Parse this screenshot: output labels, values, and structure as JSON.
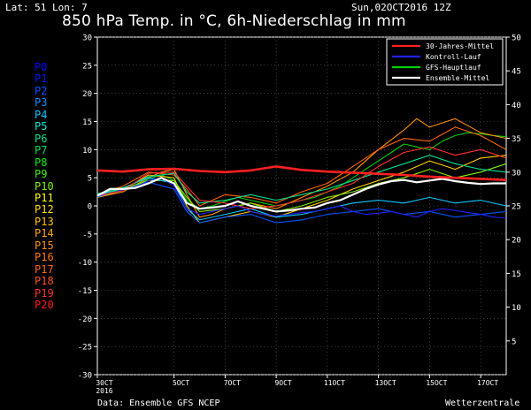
{
  "header": {
    "location": "Lat: 51 Lon: 7",
    "title": "850 hPa Temp. in °C, 6h-Niederschlag in mm",
    "run": "Sun,02OCT2016 12Z"
  },
  "footer": {
    "source": "Data: Ensemble GFS NCEP",
    "credit": "Wetterzentrale"
  },
  "members": [
    {
      "label": "P0",
      "color": "#0000ff"
    },
    {
      "label": "P1",
      "color": "#0018ff"
    },
    {
      "label": "P2",
      "color": "#0055ff"
    },
    {
      "label": "P3",
      "color": "#0090ff"
    },
    {
      "label": "P4",
      "color": "#00c8ff"
    },
    {
      "label": "P5",
      "color": "#00e8d0"
    },
    {
      "label": "P6",
      "color": "#00e090"
    },
    {
      "label": "P7",
      "color": "#00e050"
    },
    {
      "label": "P8",
      "color": "#00f000"
    },
    {
      "label": "P9",
      "color": "#40f000"
    },
    {
      "label": "P10",
      "color": "#80f000"
    },
    {
      "label": "P11",
      "color": "#ffff00"
    },
    {
      "label": "P12",
      "color": "#ffdd00"
    },
    {
      "label": "P13",
      "color": "#ffc000"
    },
    {
      "label": "P14",
      "color": "#ffa500"
    },
    {
      "label": "P15",
      "color": "#ff9000"
    },
    {
      "label": "P16",
      "color": "#ff7a00"
    },
    {
      "label": "P17",
      "color": "#ff6600"
    },
    {
      "label": "P18",
      "color": "#ff5020"
    },
    {
      "label": "P19",
      "color": "#ff3030"
    },
    {
      "label": "P20",
      "color": "#ff1a1a"
    }
  ],
  "chart_data": {
    "type": "line",
    "x_ticks": [
      "30CT\n2016",
      "5OCT",
      "7OCT",
      "9OCT",
      "11OCT",
      "13OCT",
      "15OCT",
      "17OCT"
    ],
    "x_tick_positions": [
      0,
      12,
      20,
      28,
      36,
      44,
      52,
      60
    ],
    "x_range": [
      0,
      64
    ],
    "y_left": {
      "range": [
        -30,
        30
      ],
      "ticks": [
        30,
        25,
        20,
        15,
        10,
        5,
        0,
        -5,
        -10,
        -15,
        -20,
        -25,
        -30
      ]
    },
    "y_right": {
      "range": [
        0,
        50
      ],
      "ticks": [
        50,
        45,
        40,
        35,
        30,
        25,
        20,
        15,
        10,
        5
      ]
    },
    "legend": {
      "placement": "top-right",
      "entries": [
        {
          "name": "30-Jahres-Mittel",
          "color": "#ff2020"
        },
        {
          "name": "Kontroll-Lauf",
          "color": "#2020ff"
        },
        {
          "name": "GFS-Hauptlauf",
          "color": "#00d000"
        },
        {
          "name": "Ensemble-Mittel",
          "color": "#ffffff"
        }
      ]
    },
    "grid": true,
    "series": [
      {
        "name": "30-Jahres-Mittel",
        "color": "#ff2020",
        "points": [
          [
            0,
            6.3
          ],
          [
            4,
            6.1
          ],
          [
            8,
            6.5
          ],
          [
            12,
            6.6
          ],
          [
            16,
            6.2
          ],
          [
            20,
            6.0
          ],
          [
            24,
            6.3
          ],
          [
            28,
            7.0
          ],
          [
            32,
            6.4
          ],
          [
            36,
            6.1
          ],
          [
            40,
            5.9
          ],
          [
            44,
            5.7
          ],
          [
            48,
            5.5
          ],
          [
            52,
            5.2
          ],
          [
            56,
            5.0
          ],
          [
            60,
            4.8
          ],
          [
            64,
            4.6
          ]
        ]
      },
      {
        "name": "Ensemble-Mittel",
        "color": "#ffffff",
        "points": [
          [
            0,
            1.8
          ],
          [
            2,
            3.0
          ],
          [
            4,
            3.0
          ],
          [
            6,
            3.2
          ],
          [
            8,
            4.0
          ],
          [
            10,
            5.0
          ],
          [
            12,
            4.0
          ],
          [
            14,
            0.5
          ],
          [
            16,
            -0.5
          ],
          [
            18,
            -0.3
          ],
          [
            20,
            0.0
          ],
          [
            22,
            0.8
          ],
          [
            24,
            0.0
          ],
          [
            26,
            -0.5
          ],
          [
            28,
            -1.0
          ],
          [
            30,
            -0.8
          ],
          [
            32,
            -0.5
          ],
          [
            34,
            -0.3
          ],
          [
            36,
            0.5
          ],
          [
            38,
            1.0
          ],
          [
            40,
            2.0
          ],
          [
            42,
            3.0
          ],
          [
            44,
            3.8
          ],
          [
            46,
            4.4
          ],
          [
            48,
            4.6
          ],
          [
            50,
            4.2
          ],
          [
            52,
            4.5
          ],
          [
            54,
            4.8
          ],
          [
            56,
            4.4
          ],
          [
            58,
            4.1
          ],
          [
            60,
            3.9
          ],
          [
            62,
            4.0
          ],
          [
            64,
            4.0
          ]
        ]
      },
      {
        "name": "Kontroll-Lauf",
        "color": "#2020ff",
        "points": [
          [
            0,
            1.8
          ],
          [
            2,
            3.0
          ],
          [
            4,
            2.8
          ],
          [
            6,
            3.3
          ],
          [
            8,
            4.5
          ],
          [
            10,
            5.0
          ],
          [
            12,
            3.5
          ],
          [
            14,
            -0.5
          ],
          [
            16,
            -1.5
          ],
          [
            18,
            -1.0
          ],
          [
            20,
            -0.5
          ],
          [
            22,
            0.0
          ],
          [
            24,
            -1.0
          ],
          [
            26,
            -1.5
          ],
          [
            28,
            -1.8
          ],
          [
            30,
            -1.5
          ],
          [
            32,
            -1.2
          ],
          [
            34,
            -1.0
          ],
          [
            36,
            -0.5
          ],
          [
            38,
            0.0
          ],
          [
            40,
            -1.0
          ],
          [
            42,
            -1.5
          ],
          [
            44,
            -1.3
          ],
          [
            46,
            -1.0
          ],
          [
            48,
            -1.5
          ],
          [
            50,
            -2.0
          ],
          [
            52,
            -1.0
          ],
          [
            54,
            -0.5
          ],
          [
            56,
            -0.8
          ],
          [
            58,
            -1.2
          ],
          [
            60,
            -1.5
          ],
          [
            62,
            -2.0
          ],
          [
            64,
            -2.2
          ]
        ]
      },
      {
        "name": "GFS-Hauptlauf",
        "color": "#00d000",
        "points": [
          [
            0,
            1.8
          ],
          [
            2,
            3.1
          ],
          [
            4,
            3.2
          ],
          [
            6,
            3.5
          ],
          [
            8,
            4.8
          ],
          [
            10,
            5.5
          ],
          [
            12,
            4.5
          ],
          [
            14,
            1.0
          ],
          [
            16,
            -0.5
          ],
          [
            18,
            0.0
          ],
          [
            20,
            0.8
          ],
          [
            22,
            1.5
          ],
          [
            24,
            1.0
          ],
          [
            26,
            0.5
          ],
          [
            28,
            0.0
          ],
          [
            30,
            0.5
          ],
          [
            32,
            1.0
          ],
          [
            34,
            1.5
          ],
          [
            36,
            2.5
          ],
          [
            38,
            3.5
          ],
          [
            40,
            5.0
          ],
          [
            42,
            6.5
          ],
          [
            44,
            8.0
          ],
          [
            46,
            9.5
          ],
          [
            48,
            11.0
          ],
          [
            50,
            10.5
          ],
          [
            52,
            10.0
          ],
          [
            54,
            11.5
          ],
          [
            56,
            12.5
          ],
          [
            58,
            13.0
          ],
          [
            60,
            12.8
          ],
          [
            62,
            12.5
          ],
          [
            64,
            12.3
          ]
        ]
      },
      {
        "name": "",
        "color": "#ff9000",
        "points": [
          [
            0,
            1.5
          ],
          [
            4,
            2.5
          ],
          [
            8,
            5.0
          ],
          [
            10,
            6.0
          ],
          [
            12,
            6.5
          ],
          [
            14,
            2.0
          ],
          [
            16,
            -2.0
          ],
          [
            18,
            -1.5
          ],
          [
            20,
            -0.5
          ],
          [
            24,
            0.5
          ],
          [
            28,
            -0.5
          ],
          [
            32,
            1.5
          ],
          [
            36,
            3.5
          ],
          [
            40,
            6.0
          ],
          [
            44,
            10.0
          ],
          [
            48,
            13.5
          ],
          [
            50,
            15.5
          ],
          [
            52,
            14.0
          ],
          [
            56,
            15.5
          ],
          [
            60,
            13.0
          ],
          [
            64,
            12.0
          ]
        ]
      },
      {
        "name": "",
        "color": "#ff6600",
        "points": [
          [
            0,
            2.0
          ],
          [
            4,
            3.5
          ],
          [
            8,
            6.0
          ],
          [
            12,
            5.5
          ],
          [
            14,
            3.0
          ],
          [
            16,
            0.0
          ],
          [
            20,
            2.0
          ],
          [
            24,
            1.5
          ],
          [
            28,
            0.5
          ],
          [
            32,
            2.5
          ],
          [
            36,
            4.0
          ],
          [
            40,
            7.0
          ],
          [
            44,
            10.0
          ],
          [
            48,
            12.0
          ],
          [
            52,
            11.5
          ],
          [
            56,
            14.0
          ],
          [
            60,
            12.5
          ],
          [
            64,
            10.0
          ]
        ]
      },
      {
        "name": "",
        "color": "#ffcc00",
        "points": [
          [
            0,
            1.5
          ],
          [
            4,
            2.8
          ],
          [
            8,
            5.5
          ],
          [
            12,
            5.0
          ],
          [
            14,
            0.0
          ],
          [
            16,
            -3.0
          ],
          [
            20,
            -2.0
          ],
          [
            24,
            -1.0
          ],
          [
            28,
            -2.0
          ],
          [
            32,
            -0.5
          ],
          [
            36,
            1.0
          ],
          [
            40,
            3.0
          ],
          [
            44,
            4.5
          ],
          [
            48,
            6.0
          ],
          [
            52,
            8.0
          ],
          [
            56,
            6.5
          ],
          [
            60,
            8.5
          ],
          [
            64,
            9.0
          ]
        ]
      },
      {
        "name": "",
        "color": "#80f000",
        "points": [
          [
            0,
            2.0
          ],
          [
            4,
            3.0
          ],
          [
            8,
            4.5
          ],
          [
            12,
            4.5
          ],
          [
            14,
            1.5
          ],
          [
            16,
            -1.0
          ],
          [
            20,
            -0.5
          ],
          [
            24,
            0.5
          ],
          [
            28,
            -1.0
          ],
          [
            32,
            0.0
          ],
          [
            36,
            1.5
          ],
          [
            40,
            2.5
          ],
          [
            44,
            4.0
          ],
          [
            48,
            5.0
          ],
          [
            52,
            6.5
          ],
          [
            56,
            5.0
          ],
          [
            60,
            6.0
          ],
          [
            64,
            7.5
          ]
        ]
      },
      {
        "name": "",
        "color": "#00c8ff",
        "points": [
          [
            0,
            1.8
          ],
          [
            4,
            3.2
          ],
          [
            8,
            5.0
          ],
          [
            12,
            4.0
          ],
          [
            14,
            -0.5
          ],
          [
            16,
            -2.5
          ],
          [
            20,
            -1.5
          ],
          [
            24,
            -0.5
          ],
          [
            28,
            -2.0
          ],
          [
            32,
            -1.5
          ],
          [
            36,
            -0.5
          ],
          [
            40,
            0.5
          ],
          [
            44,
            1.0
          ],
          [
            48,
            0.5
          ],
          [
            52,
            1.5
          ],
          [
            56,
            0.5
          ],
          [
            60,
            1.0
          ],
          [
            64,
            0.0
          ]
        ]
      },
      {
        "name": "",
        "color": "#0055ff",
        "points": [
          [
            0,
            1.6
          ],
          [
            4,
            2.9
          ],
          [
            8,
            4.2
          ],
          [
            12,
            3.0
          ],
          [
            14,
            -1.0
          ],
          [
            16,
            -3.0
          ],
          [
            20,
            -2.0
          ],
          [
            24,
            -1.5
          ],
          [
            28,
            -3.0
          ],
          [
            32,
            -2.5
          ],
          [
            36,
            -1.5
          ],
          [
            40,
            -1.0
          ],
          [
            44,
            -0.5
          ],
          [
            48,
            -1.5
          ],
          [
            52,
            -1.0
          ],
          [
            56,
            -2.0
          ],
          [
            60,
            -1.5
          ],
          [
            64,
            -1.0
          ]
        ]
      },
      {
        "name": "",
        "color": "#00e090",
        "points": [
          [
            0,
            2.2
          ],
          [
            4,
            3.1
          ],
          [
            8,
            5.2
          ],
          [
            12,
            5.8
          ],
          [
            14,
            2.5
          ],
          [
            16,
            0.5
          ],
          [
            20,
            1.0
          ],
          [
            24,
            2.0
          ],
          [
            28,
            1.0
          ],
          [
            32,
            2.0
          ],
          [
            36,
            3.0
          ],
          [
            40,
            4.5
          ],
          [
            44,
            6.0
          ],
          [
            48,
            7.5
          ],
          [
            52,
            9.0
          ],
          [
            56,
            7.5
          ],
          [
            60,
            6.5
          ],
          [
            64,
            6.0
          ]
        ]
      },
      {
        "name": "",
        "color": "#ff3030",
        "points": [
          [
            0,
            1.8
          ],
          [
            4,
            2.7
          ],
          [
            8,
            5.8
          ],
          [
            12,
            6.0
          ],
          [
            14,
            3.5
          ],
          [
            16,
            1.0
          ],
          [
            20,
            0.5
          ],
          [
            24,
            -0.5
          ],
          [
            28,
            0.0
          ],
          [
            32,
            1.0
          ],
          [
            36,
            2.5
          ],
          [
            40,
            4.0
          ],
          [
            44,
            7.0
          ],
          [
            48,
            9.5
          ],
          [
            52,
            10.5
          ],
          [
            56,
            9.0
          ],
          [
            60,
            10.0
          ],
          [
            64,
            8.5
          ]
        ]
      }
    ]
  }
}
